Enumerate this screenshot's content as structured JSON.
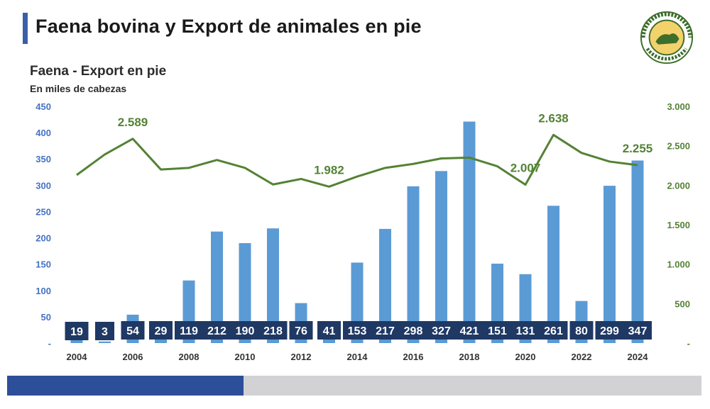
{
  "header": {
    "title": "Faena bovina y Export de animales en pie",
    "subtitle": "Faena - Export en pie",
    "unit": "En miles de cabezas"
  },
  "logo": {
    "name": "asociacion-rural-del-uruguay-seal",
    "text": "ASOCIACION RURAL DEL URUGUAY"
  },
  "colors": {
    "accent": "#3b5ea8",
    "bar": "#5b9bd5",
    "label_box": "#1f3864",
    "line": "#548235",
    "left_axis": "#4472c4",
    "right_axis": "#548235",
    "footer_blue": "#2d4f9a",
    "footer_gray": "#d2d2d4"
  },
  "chart_data": {
    "type": "bar",
    "categories": [
      "2004",
      "2005",
      "2006",
      "2007",
      "2008",
      "2009",
      "2010",
      "2011",
      "2012",
      "2013",
      "2014",
      "2015",
      "2016",
      "2017",
      "2018",
      "2019",
      "2020",
      "2021",
      "2022",
      "2023",
      "2024"
    ],
    "x_tick_labels": [
      "2004",
      "2006",
      "2008",
      "2010",
      "2012",
      "2014",
      "2016",
      "2018",
      "2020",
      "2022",
      "2024"
    ],
    "series": [
      {
        "type": "bar",
        "axis": "left",
        "values": [
          19,
          3,
          54,
          29,
          119,
          212,
          190,
          218,
          76,
          41,
          153,
          217,
          298,
          327,
          421,
          151,
          131,
          261,
          80,
          299,
          347
        ]
      },
      {
        "type": "line",
        "axis": "right",
        "values": [
          2130,
          2390,
          2589,
          2200,
          2220,
          2320,
          2220,
          2010,
          2080,
          1982,
          2110,
          2220,
          2270,
          2340,
          2350,
          2240,
          2007,
          2638,
          2410,
          2300,
          2255
        ],
        "labels": {
          "2006": "2.589",
          "2013": "1.982",
          "2020": "2.007",
          "2021": "2.638",
          "2024": "2.255"
        }
      }
    ],
    "left_axis": {
      "ylim": [
        0,
        450
      ],
      "ticks": [
        "-",
        "50",
        "100",
        "150",
        "200",
        "250",
        "300",
        "350",
        "400",
        "450"
      ]
    },
    "right_axis": {
      "ylim": [
        0,
        3000
      ],
      "ticks": [
        "-",
        "500",
        "1.000",
        "1.500",
        "2.000",
        "2.500",
        "3.000"
      ]
    },
    "grid": false
  }
}
